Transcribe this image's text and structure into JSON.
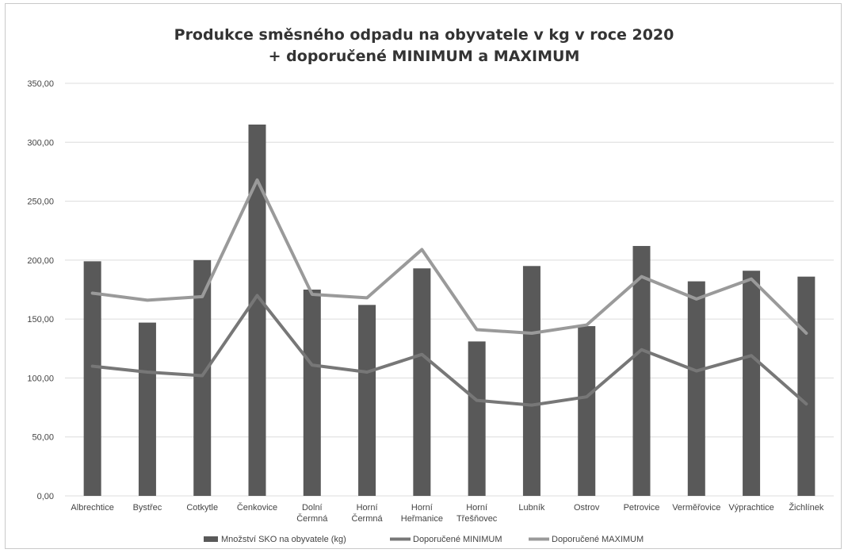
{
  "chart_data": {
    "type": "bar",
    "title": "Produkce směsného odpadu na obyvatele v kg v roce 2020",
    "subtitle": "+ doporučené MINIMUM a MAXIMUM",
    "xlabel": "",
    "ylabel": "",
    "ylim": [
      0,
      350
    ],
    "yticks": [
      "0,00",
      "50,00",
      "100,00",
      "150,00",
      "200,00",
      "250,00",
      "300,00",
      "350,00"
    ],
    "grid": true,
    "legend_position": "bottom",
    "categories": [
      [
        "Albrechtice"
      ],
      [
        "Bystřec"
      ],
      [
        "Cotkytle"
      ],
      [
        "Čenkovice"
      ],
      [
        "Dolní",
        "Čermná"
      ],
      [
        "Horní",
        "Čermná"
      ],
      [
        "Horní",
        "Heřmanice"
      ],
      [
        "Horní",
        "Třešňovec"
      ],
      [
        "Lubník"
      ],
      [
        "Ostrov"
      ],
      [
        "Petrovice"
      ],
      [
        "Verměřovice"
      ],
      [
        "Výprachtice"
      ],
      [
        "Žichlínek"
      ]
    ],
    "series": [
      {
        "name": "Množství SKO na obyvatele  (kg)",
        "type": "bar",
        "color": "#595959",
        "values": [
          199,
          147,
          200,
          315,
          175,
          162,
          193,
          131,
          195,
          144,
          212,
          182,
          191,
          186
        ]
      },
      {
        "name": "Doporučené MINIMUM",
        "type": "line",
        "color": "#777777",
        "values": [
          110,
          105,
          102,
          170,
          111,
          105,
          120,
          81,
          77,
          84,
          124,
          106,
          119,
          78
        ]
      },
      {
        "name": "Doporučené MAXIMUM",
        "type": "line",
        "color": "#9a9a9a",
        "values": [
          172,
          166,
          169,
          268,
          171,
          168,
          209,
          141,
          138,
          145,
          186,
          167,
          184,
          138
        ]
      }
    ]
  }
}
